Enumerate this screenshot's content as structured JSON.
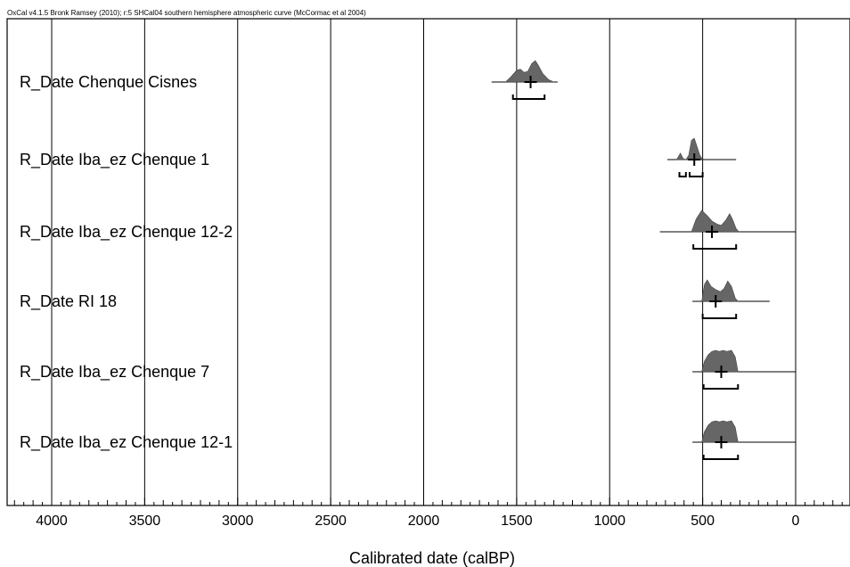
{
  "chart_data": {
    "type": "range-plot",
    "header": "OxCal v4.1.5 Bronk Ramsey (2010); r:5 SHCal04 southern hemisphere atmospheric curve (McCormac et al 2004)",
    "xlabel": "Calibrated date (calBP)",
    "x_reversed": true,
    "xlim": [
      4230,
      -260
    ],
    "x_ticks": [
      4000,
      3500,
      3000,
      2500,
      2000,
      1500,
      1000,
      500,
      0
    ],
    "gridlines": true,
    "series": [
      {
        "name": "R_Date Chenque Cisnes",
        "median": 1425,
        "range": [
          1635,
          1280
        ],
        "hpd_bracket": [
          [
            1520,
            1350
          ]
        ],
        "density": [
          [
            1560,
            0
          ],
          [
            1530,
            0.25
          ],
          [
            1500,
            0.55
          ],
          [
            1480,
            0.6
          ],
          [
            1460,
            0.45
          ],
          [
            1440,
            0.5
          ],
          [
            1420,
            0.85
          ],
          [
            1400,
            1
          ],
          [
            1385,
            0.8
          ],
          [
            1360,
            0.4
          ],
          [
            1330,
            0.12
          ],
          [
            1300,
            0
          ]
        ]
      },
      {
        "name": "R_Date Iba_ez Chenque 1",
        "median": 545,
        "range": [
          690,
          320
        ],
        "hpd_bracket": [
          [
            625,
            590
          ],
          [
            570,
            500
          ]
        ],
        "density": [
          [
            640,
            0
          ],
          [
            620,
            0.3
          ],
          [
            605,
            0.05
          ],
          [
            590,
            0
          ],
          [
            575,
            0.2
          ],
          [
            560,
            0.9
          ],
          [
            545,
            1
          ],
          [
            530,
            0.6
          ],
          [
            515,
            0.2
          ],
          [
            500,
            0
          ]
        ]
      },
      {
        "name": "R_Date Iba_ez Chenque 12-2",
        "median": 450,
        "range": [
          730,
          0
        ],
        "hpd_bracket": [
          [
            550,
            320
          ]
        ],
        "density": [
          [
            560,
            0
          ],
          [
            535,
            0.6
          ],
          [
            505,
            1
          ],
          [
            475,
            0.75
          ],
          [
            450,
            0.5
          ],
          [
            420,
            0.35
          ],
          [
            400,
            0.3
          ],
          [
            375,
            0.55
          ],
          [
            355,
            0.85
          ],
          [
            340,
            0.6
          ],
          [
            320,
            0.15
          ],
          [
            305,
            0
          ]
        ]
      },
      {
        "name": "R_Date RI 18",
        "median": 430,
        "range": [
          555,
          140
        ],
        "hpd_bracket": [
          [
            500,
            320
          ]
        ],
        "density": [
          [
            505,
            0
          ],
          [
            490,
            0.8
          ],
          [
            475,
            1
          ],
          [
            455,
            0.7
          ],
          [
            430,
            0.55
          ],
          [
            405,
            0.45
          ],
          [
            385,
            0.6
          ],
          [
            365,
            0.95
          ],
          [
            345,
            0.7
          ],
          [
            325,
            0.15
          ],
          [
            310,
            0
          ]
        ]
      },
      {
        "name": "R_Date Iba_ez Chenque 7",
        "median": 400,
        "range": [
          555,
          0
        ],
        "hpd_bracket": [
          [
            495,
            310
          ]
        ],
        "density": [
          [
            505,
            0
          ],
          [
            490,
            0.5
          ],
          [
            470,
            0.8
          ],
          [
            450,
            0.95
          ],
          [
            430,
            1
          ],
          [
            410,
            0.95
          ],
          [
            390,
            1
          ],
          [
            370,
            0.95
          ],
          [
            345,
            1
          ],
          [
            325,
            0.7
          ],
          [
            310,
            0
          ]
        ]
      },
      {
        "name": "R_Date Iba_ez Chenque 12-1",
        "median": 400,
        "range": [
          555,
          0
        ],
        "hpd_bracket": [
          [
            495,
            310
          ]
        ],
        "density": [
          [
            505,
            0
          ],
          [
            490,
            0.5
          ],
          [
            470,
            0.8
          ],
          [
            450,
            0.95
          ],
          [
            430,
            1
          ],
          [
            410,
            0.95
          ],
          [
            390,
            1
          ],
          [
            370,
            0.95
          ],
          [
            345,
            1
          ],
          [
            325,
            0.7
          ],
          [
            310,
            0
          ]
        ]
      }
    ]
  }
}
